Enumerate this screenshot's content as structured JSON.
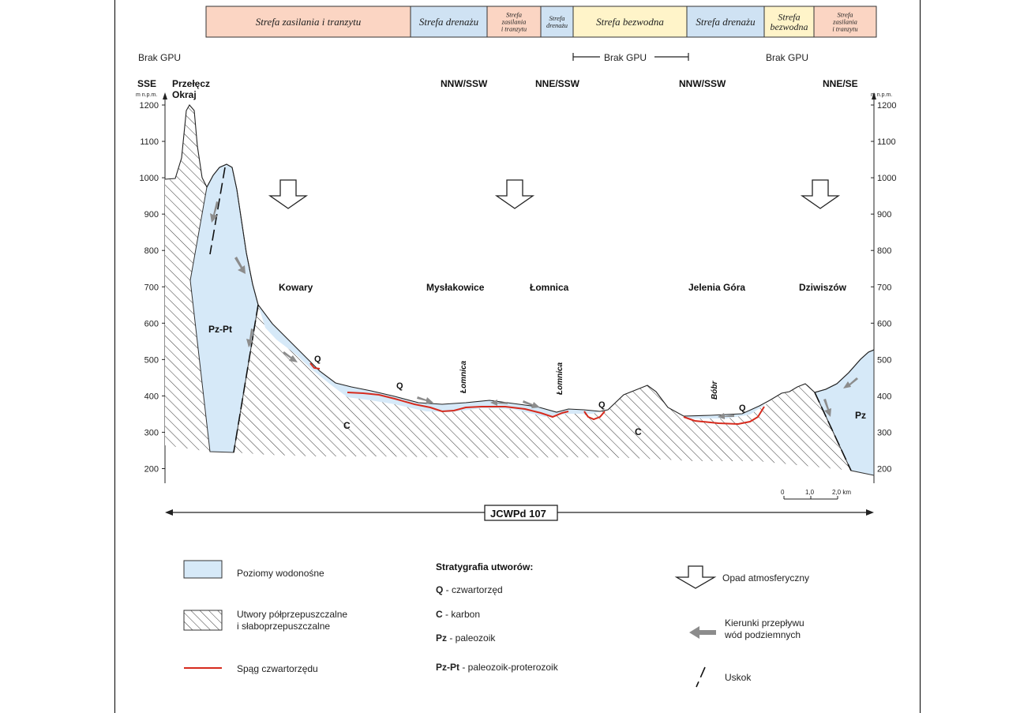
{
  "zones": [
    {
      "label": "Strefa zasilania i tranzytu",
      "type": "recharge"
    },
    {
      "label": "Strefa drenażu",
      "type": "drainage"
    },
    {
      "label": "Strefa zasilania i tranzytu",
      "type": "recharge"
    },
    {
      "label": "Strefa drenażu",
      "type": "drainage"
    },
    {
      "label": "Strefa bezwodna",
      "type": "dry"
    },
    {
      "label": "Strefa drenażu",
      "type": "drainage"
    },
    {
      "label": "Strefa bezwodna",
      "type": "dry"
    },
    {
      "label": "Strefa zasilania i tranzytu",
      "type": "recharge"
    }
  ],
  "colors": {
    "recharge": "#fbd5c3",
    "drainage": "#cfe2f3",
    "dry": "#fff4c9",
    "aquifer": "#d6e9f8",
    "quaternary_base": "#d62b1e",
    "arrow": "#8c8c8c"
  },
  "gpu": {
    "left": "Brak GPU",
    "center": "Brak GPU",
    "right": "Brak GPU"
  },
  "directions": {
    "left_end": "SSE",
    "d1": "NNW/SSW",
    "d2": "NNE/SSW",
    "d3": "NNW/SSW",
    "d4": "NNE/SE"
  },
  "pass_name_line1": "Przełęcz",
  "pass_name_line2": "Okraj",
  "axis": {
    "unit_left": "m n.p.m.",
    "unit_right": "m n.p.m.",
    "ticks": [
      "1200",
      "1100",
      "1000",
      "900",
      "800",
      "700",
      "600",
      "500",
      "400",
      "300",
      "200"
    ]
  },
  "places": {
    "kowary": "Kowary",
    "myslakowice": "Mysłakowice",
    "lomnica": "Łomnica",
    "jelenia": "Jelenia Góra",
    "dziwiszow": "Dziwiszów"
  },
  "rivers": {
    "r1": "Łomnica",
    "r2": "Łomnica",
    "r3": "Bóbr"
  },
  "units": {
    "pzpt": "Pz-Pt",
    "c1": "C",
    "c2": "C",
    "pz": "Pz",
    "q": "Q"
  },
  "scale": {
    "t0": "0",
    "t1": "1,0",
    "t2": "2,0 km"
  },
  "jcwpd": "JCWPd 107",
  "legend": {
    "aquifer": "Poziomy wodonośne",
    "semi_line1": "Utwory półprzepuszczalne",
    "semi_line2": "i słaboprzepuszczalne",
    "base": "Spąg czwartorzędu",
    "strat_title": "Stratygrafia utworów:",
    "strat": [
      {
        "code": "Q",
        "desc": " - czwartorzęd"
      },
      {
        "code": "C",
        "desc": " - karbon"
      },
      {
        "code": "Pz",
        "desc": " - paleozoik"
      },
      {
        "code": "Pz-Pt",
        "desc": " - paleozoik-proterozoik"
      }
    ],
    "precip": "Opad atmosferyczny",
    "flow_line1": "Kierunki przepływu",
    "flow_line2": "wód podziemnych",
    "fault": "Uskok"
  }
}
